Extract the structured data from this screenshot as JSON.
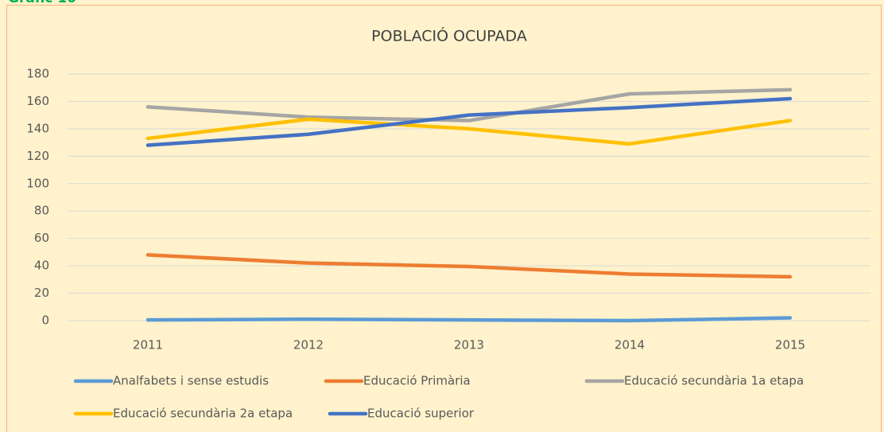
{
  "heading": "Gràfic 10",
  "chart_data": {
    "type": "line",
    "title": "POBLACIÓ OCUPADA",
    "categories": [
      "2011",
      "2012",
      "2013",
      "2014",
      "2015"
    ],
    "ylim": [
      0,
      180
    ],
    "yticks": [
      0,
      20,
      40,
      60,
      80,
      100,
      120,
      140,
      160,
      180
    ],
    "grid": true,
    "series": [
      {
        "name": "Analfabets i sense estudis",
        "color": "#5b9bd5",
        "values": [
          0.5,
          1,
          0.5,
          0,
          2
        ]
      },
      {
        "name": "Educació Primària",
        "color": "#ed7d31",
        "values": [
          48,
          42,
          39.5,
          34,
          32
        ]
      },
      {
        "name": "Educació secundària 1a etapa",
        "color": "#a5a5a5",
        "values": [
          156,
          148.5,
          146,
          165.5,
          168.5
        ]
      },
      {
        "name": "Educació secundària 2a etapa",
        "color": "#ffc000",
        "values": [
          133,
          147,
          140,
          129,
          146
        ]
      },
      {
        "name": "Educació superior",
        "color": "#4472c4",
        "values": [
          128,
          136,
          150,
          155.5,
          162
        ]
      }
    ]
  }
}
